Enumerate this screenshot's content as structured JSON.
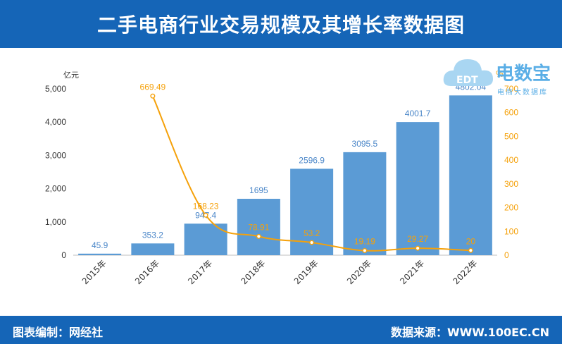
{
  "header": {
    "title": "二手电商行业交易规模及其增长率数据图"
  },
  "footer": {
    "left": "图表编制：网经社",
    "right": "数据来源：WWW.100EC.CN"
  },
  "logo": {
    "brand": "电数宝",
    "sub": "电商大数据库",
    "colors": {
      "cloud": "#a9d6f2",
      "text": "#5aaee6"
    }
  },
  "colors": {
    "bar": "#5b9bd5",
    "line": "#f5a10a",
    "label_bar": "#4a86c8",
    "label_line": "#f5a10a",
    "axis": "#333333"
  },
  "chart_data": {
    "type": "bar",
    "categories": [
      "2015年",
      "2016年",
      "2017年",
      "2018年",
      "2019年",
      "2020年",
      "2021年",
      "2022年"
    ],
    "series": [
      {
        "values": [
          45.9,
          353.2,
          947.4,
          1695,
          2596.9,
          3095.5,
          4001.7,
          4802.04
        ],
        "labels": [
          "45.9",
          "353.2",
          "947.4",
          "1695",
          "2596.9",
          "3095.5",
          "4001.7",
          "4802.04"
        ],
        "axis": "left",
        "kind": "bar"
      },
      {
        "values": [
          null,
          669.49,
          168.23,
          78.91,
          53.2,
          19.19,
          29.27,
          20
        ],
        "labels": [
          "",
          "669.49",
          "168.23",
          "78.91",
          "53.2",
          "19.19",
          "29.27",
          "20"
        ],
        "axis": "right",
        "kind": "line"
      }
    ],
    "yleft": {
      "unit": "亿元",
      "ylim": [
        0,
        5000
      ],
      "ticks": [
        0,
        1000,
        2000,
        3000,
        4000,
        5000
      ],
      "tick_labels": [
        "0",
        "1,000",
        "2,000",
        "3,000",
        "4,000",
        "5,000"
      ]
    },
    "yright": {
      "unit": "%",
      "ylim": [
        0,
        700
      ],
      "ticks": [
        0,
        100,
        200,
        300,
        400,
        500,
        600,
        700
      ],
      "tick_labels": [
        "0",
        "100",
        "200",
        "300",
        "400",
        "500",
        "600",
        "700"
      ]
    },
    "grid": false,
    "legend": "none"
  }
}
